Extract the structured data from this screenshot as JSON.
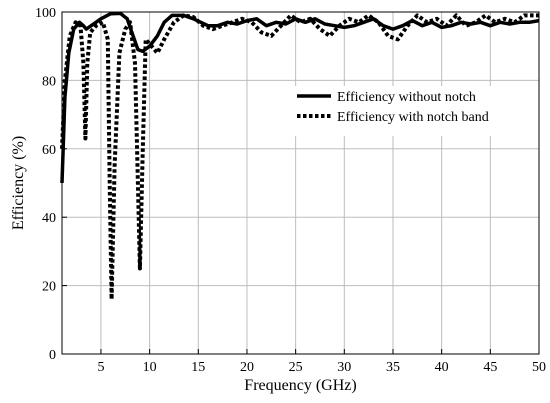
{
  "chart_data": {
    "type": "line",
    "title": "",
    "xlabel": "Frequency (GHz)",
    "ylabel": "Efficiency (%)",
    "xlim": [
      1,
      50
    ],
    "ylim": [
      0,
      100
    ],
    "x_ticks": [
      "5",
      "10",
      "15",
      "20",
      "25",
      "30",
      "35",
      "40",
      "45",
      "50"
    ],
    "y_ticks": [
      "0",
      "20",
      "40",
      "60",
      "80",
      "100"
    ],
    "grid": true,
    "legend_position": "upper-right",
    "series": [
      {
        "name": "Efficiency without notch",
        "style": "solid",
        "points": [
          [
            1.0,
            50
          ],
          [
            1.3,
            75
          ],
          [
            1.7,
            88
          ],
          [
            2.2,
            95
          ],
          [
            2.8,
            97
          ],
          [
            3.2,
            96
          ],
          [
            3.5,
            95
          ],
          [
            4.0,
            96
          ],
          [
            5.0,
            98
          ],
          [
            6.0,
            99.5
          ],
          [
            7.0,
            99.6
          ],
          [
            7.7,
            98
          ],
          [
            8.3,
            93
          ],
          [
            8.8,
            89
          ],
          [
            9.3,
            88.5
          ],
          [
            10,
            90
          ],
          [
            10.8,
            93
          ],
          [
            11.5,
            97
          ],
          [
            12.3,
            99
          ],
          [
            13.5,
            99
          ],
          [
            14.5,
            98
          ],
          [
            16,
            96
          ],
          [
            17,
            96
          ],
          [
            18,
            97
          ],
          [
            19,
            96.5
          ],
          [
            20,
            97.5
          ],
          [
            21,
            98
          ],
          [
            22,
            96
          ],
          [
            23,
            97
          ],
          [
            24,
            96.5
          ],
          [
            25,
            98
          ],
          [
            26,
            97
          ],
          [
            27,
            98
          ],
          [
            28,
            96.5
          ],
          [
            29,
            96
          ],
          [
            30,
            95.5
          ],
          [
            31,
            96
          ],
          [
            32,
            97
          ],
          [
            33,
            98
          ],
          [
            34,
            96
          ],
          [
            35,
            95
          ],
          [
            36,
            96
          ],
          [
            37,
            97.5
          ],
          [
            38,
            96
          ],
          [
            39,
            97
          ],
          [
            40,
            95.5
          ],
          [
            41,
            96
          ],
          [
            42,
            97
          ],
          [
            43,
            96.5
          ],
          [
            44,
            97
          ],
          [
            45,
            96
          ],
          [
            46,
            97
          ],
          [
            47,
            96.5
          ],
          [
            48,
            97
          ],
          [
            49,
            97
          ],
          [
            50,
            97.5
          ]
        ]
      },
      {
        "name": "Efficiency with notch band",
        "style": "dotted",
        "points": [
          [
            1.0,
            60
          ],
          [
            1.3,
            80
          ],
          [
            1.8,
            93
          ],
          [
            2.4,
            97
          ],
          [
            2.9,
            96
          ],
          [
            3.2,
            85
          ],
          [
            3.4,
            63
          ],
          [
            3.6,
            85
          ],
          [
            3.9,
            94
          ],
          [
            4.5,
            96
          ],
          [
            5.2,
            97
          ],
          [
            5.7,
            92
          ],
          [
            5.9,
            50
          ],
          [
            6.1,
            16
          ],
          [
            6.4,
            55
          ],
          [
            6.9,
            88
          ],
          [
            7.5,
            95
          ],
          [
            8.0,
            97
          ],
          [
            8.5,
            85
          ],
          [
            8.8,
            50
          ],
          [
            9.0,
            25
          ],
          [
            9.3,
            60
          ],
          [
            9.6,
            92
          ],
          [
            10.2,
            90
          ],
          [
            10.8,
            88
          ],
          [
            11.5,
            92
          ],
          [
            12.5,
            97
          ],
          [
            13.5,
            99
          ],
          [
            14.5,
            98.5
          ],
          [
            15.5,
            96
          ],
          [
            16.5,
            95
          ],
          [
            17.5,
            96
          ],
          [
            18.5,
            97
          ],
          [
            19.5,
            98
          ],
          [
            20.5,
            97
          ],
          [
            21.5,
            94
          ],
          [
            22.5,
            93
          ],
          [
            23.5,
            96
          ],
          [
            24.5,
            99
          ],
          [
            25.5,
            97
          ],
          [
            26.5,
            98
          ],
          [
            27.5,
            95
          ],
          [
            28.5,
            93
          ],
          [
            29.5,
            96
          ],
          [
            30.5,
            98
          ],
          [
            31.5,
            97
          ],
          [
            32.5,
            99
          ],
          [
            33.5,
            97
          ],
          [
            34.5,
            93
          ],
          [
            35.5,
            92
          ],
          [
            36.5,
            96
          ],
          [
            37.5,
            99
          ],
          [
            38.5,
            97
          ],
          [
            39.5,
            98
          ],
          [
            40.5,
            96
          ],
          [
            41.5,
            99
          ],
          [
            42.5,
            96
          ],
          [
            43.5,
            97
          ],
          [
            44.5,
            99
          ],
          [
            45.5,
            97
          ],
          [
            46.5,
            98
          ],
          [
            47.5,
            97
          ],
          [
            48.5,
            99
          ],
          [
            49.5,
            99
          ],
          [
            50,
            99
          ]
        ]
      }
    ]
  }
}
